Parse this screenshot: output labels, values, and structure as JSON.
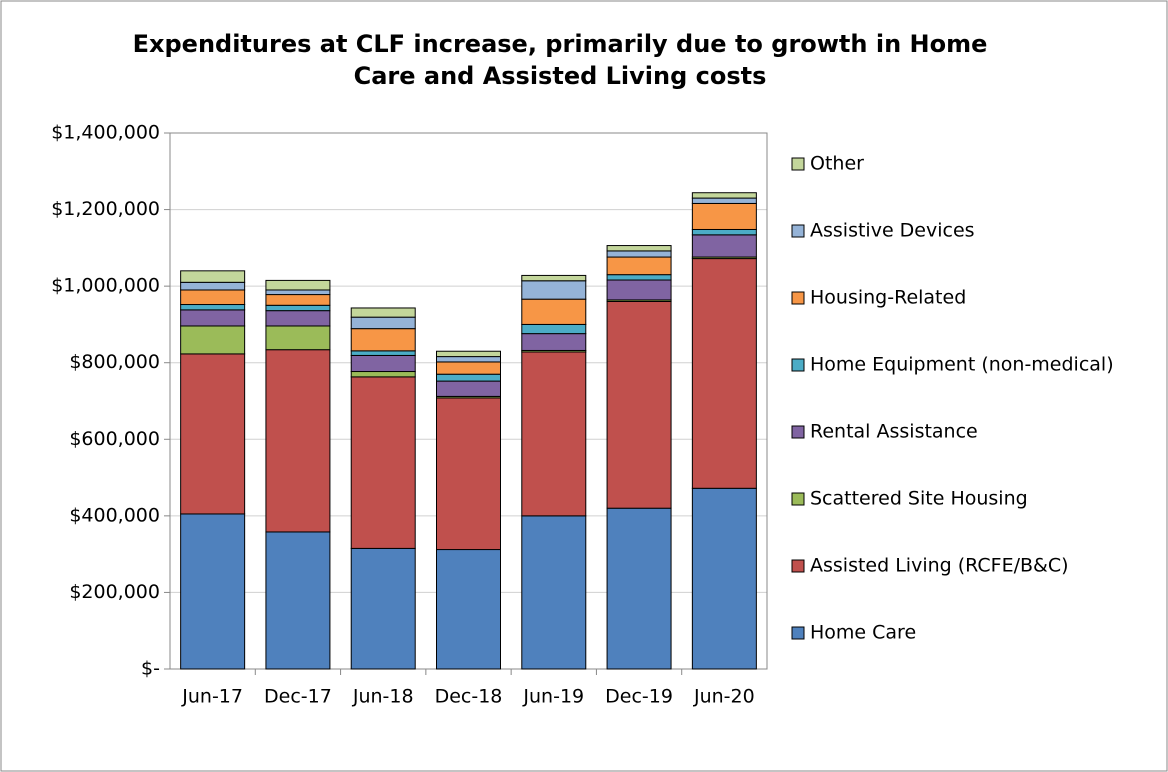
{
  "chart_data": {
    "type": "stacked_bar",
    "title": "Expenditures at CLF increase, primarily due to growth in Home Care and Assisted Living costs",
    "categories": [
      "Jun-17",
      "Dec-17",
      "Jun-18",
      "Dec-18",
      "Jun-19",
      "Dec-19",
      "Jun-20"
    ],
    "series": [
      {
        "name": "Home Care",
        "color": "#4f81bd",
        "values": [
          405000,
          358000,
          315000,
          312000,
          400000,
          420000,
          472000
        ]
      },
      {
        "name": "Assisted Living (RCFE/B&C)",
        "color": "#c0504d",
        "values": [
          418000,
          476000,
          448000,
          396000,
          428000,
          540000,
          600000
        ]
      },
      {
        "name": "Scattered Site Housing",
        "color": "#9bbb59",
        "values": [
          73000,
          62000,
          14000,
          4000,
          4000,
          4000,
          4000
        ]
      },
      {
        "name": "Rental Assistance",
        "color": "#8064a2",
        "values": [
          42000,
          40000,
          42000,
          40000,
          44000,
          52000,
          58000
        ]
      },
      {
        "name": "Home Equipment (non-medical)",
        "color": "#4bacc6",
        "values": [
          14000,
          14000,
          12000,
          18000,
          24000,
          14000,
          14000
        ]
      },
      {
        "name": "Housing-Related",
        "color": "#f79646",
        "values": [
          38000,
          28000,
          58000,
          32000,
          66000,
          46000,
          68000
        ]
      },
      {
        "name": "Assistive Devices",
        "color": "#95b3d7",
        "values": [
          20000,
          12000,
          30000,
          14000,
          48000,
          16000,
          14000
        ]
      },
      {
        "name": "Other",
        "color": "#c3d69b",
        "values": [
          30000,
          25000,
          24000,
          14000,
          14000,
          14000,
          14000
        ]
      }
    ],
    "ylim": [
      0,
      1400000
    ],
    "yticks": [
      {
        "value": 0,
        "label": "$-"
      },
      {
        "value": 200000,
        "label": "$200,000"
      },
      {
        "value": 400000,
        "label": "$400,000"
      },
      {
        "value": 600000,
        "label": "$600,000"
      },
      {
        "value": 800000,
        "label": "$800,000"
      },
      {
        "value": 1000000,
        "label": "$1,000,000"
      },
      {
        "value": 1200000,
        "label": "$1,200,000"
      },
      {
        "value": 1400000,
        "label": "$1,400,000"
      }
    ],
    "grid": true,
    "legend": "right"
  }
}
